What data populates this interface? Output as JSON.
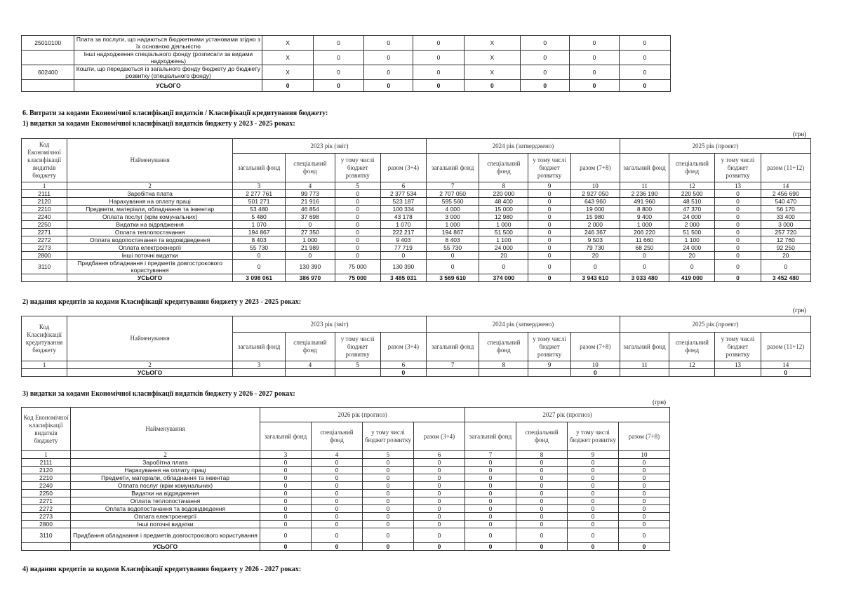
{
  "top_table": {
    "rows": [
      {
        "code": "25010100",
        "name": "Плата за послуги, що надаються бюджетними установами згідно з їх основною діяльністю",
        "values": [
          "X",
          "0",
          "0",
          "0",
          "X",
          "0",
          "0",
          "0"
        ]
      },
      {
        "code": "",
        "name": "Інші надходження спеціального фонду (розписати за видами надходжень)",
        "values": [
          "X",
          "0",
          "0",
          "0",
          "X",
          "0",
          "0",
          "0"
        ]
      },
      {
        "code": "602400",
        "name": "Кошти, що передаються із загального фонду бюджету до бюджету розвитку (спеціального фонду)",
        "values": [
          "X",
          "0",
          "0",
          "0",
          "X",
          "0",
          "0",
          "0"
        ]
      },
      {
        "code": "",
        "name": "УСЬОГО",
        "values": [
          "0",
          "0",
          "0",
          "0",
          "0",
          "0",
          "0",
          "0"
        ],
        "total": true
      }
    ]
  },
  "section6": {
    "title": "6. Витрати за кодами Економічної класифікації видатків / Класифікації кредитування бюджету:"
  },
  "s1": {
    "title": "1) видатки за кодами Економічної класифікації видатків бюджету у 2023 - 2025 роках:",
    "unit": "(грн)",
    "code_header": "Код Економічної класифікації видатків бюджету",
    "name_header": "Найменування",
    "years": [
      "2023 рік (звіт)",
      "2024 рік (затверджено)",
      "2025 рік (проект)"
    ],
    "subheaders": [
      "загальний фонд",
      "спеціальний фонд",
      "у тому числі бюджет розвитку",
      "разом (3+4)",
      "загальний фонд",
      "спеціальний фонд",
      "у тому числі бюджет розвитку",
      "разом (7+8)",
      "загальний фонд",
      "спеціальний фонд",
      "у тому числі бюджет розвитку",
      "разом (11+12)"
    ],
    "numbers": [
      "1",
      "2",
      "3",
      "4",
      "5",
      "6",
      "7",
      "8",
      "9",
      "10",
      "11",
      "12",
      "13",
      "14"
    ],
    "rows": [
      {
        "code": "2111",
        "name": "Заробітна плата",
        "values": [
          "2 277 761",
          "99 773",
          "0",
          "2 377 534",
          "2 707 050",
          "220 000",
          "0",
          "2 927 050",
          "2 236 190",
          "220 500",
          "0",
          "2 456 690"
        ]
      },
      {
        "code": "2120",
        "name": "Нарахування на оплату праці",
        "values": [
          "501 271",
          "21 916",
          "0",
          "523 187",
          "595 560",
          "48 400",
          "0",
          "643 960",
          "491 960",
          "48 510",
          "0",
          "540 470"
        ]
      },
      {
        "code": "2210",
        "name": "Предмети, матеріали, обладнання та інвентар",
        "values": [
          "53 480",
          "46 854",
          "0",
          "100 334",
          "4 000",
          "15 000",
          "0",
          "19 000",
          "8 800",
          "47 370",
          "0",
          "56 170"
        ]
      },
      {
        "code": "2240",
        "name": "Оплата послуг (крім комунальних)",
        "values": [
          "5 480",
          "37 698",
          "0",
          "43 178",
          "3 000",
          "12 980",
          "0",
          "15 980",
          "9 400",
          "24 000",
          "0",
          "33 400"
        ]
      },
      {
        "code": "2250",
        "name": "Видатки на відрядження",
        "values": [
          "1 070",
          "0",
          "0",
          "1 070",
          "1 000",
          "1 000",
          "0",
          "2 000",
          "1 000",
          "2 000",
          "0",
          "3 000"
        ]
      },
      {
        "code": "2271",
        "name": "Оплата теплопостачання",
        "values": [
          "194 867",
          "27 350",
          "0",
          "222 217",
          "194 867",
          "51 500",
          "0",
          "246 367",
          "206 220",
          "51 500",
          "0",
          "257 720"
        ]
      },
      {
        "code": "2272",
        "name": "Оплата водопостачання та водовідведення",
        "values": [
          "8 403",
          "1 000",
          "0",
          "9 403",
          "8 403",
          "1 100",
          "0",
          "9 503",
          "11 660",
          "1 100",
          "0",
          "12 760"
        ]
      },
      {
        "code": "2273",
        "name": "Оплата електроенергії",
        "values": [
          "55 730",
          "21 989",
          "0",
          "77 719",
          "55 730",
          "24 000",
          "0",
          "79 730",
          "68 250",
          "24 000",
          "0",
          "92 250"
        ]
      },
      {
        "code": "2800",
        "name": "Інші поточні видатки",
        "values": [
          "0",
          "0",
          "0",
          "0",
          "0",
          "20",
          "0",
          "20",
          "0",
          "20",
          "0",
          "20"
        ]
      },
      {
        "code": "3110",
        "name": "Придбання обладнання і предметів довгострокового користування",
        "values": [
          "0",
          "130 390",
          "75 000",
          "130 390",
          "0",
          "0",
          "0",
          "0",
          "0",
          "0",
          "0",
          "0"
        ],
        "tall": true
      },
      {
        "code": "",
        "name": "УСЬОГО",
        "values": [
          "3 098 061",
          "386 970",
          "75 000",
          "3 485 031",
          "3 569 610",
          "374 000",
          "0",
          "3 943 610",
          "3 033 480",
          "419 000",
          "0",
          "3 452 480"
        ],
        "total": true
      }
    ]
  },
  "s2": {
    "title": "2) надання кредитів за кодами Класифікації кредитування бюджету у 2023 - 2025 роках:",
    "unit": "(грн)",
    "code_header": "Код Класифікації кредитування бюджету",
    "name_header": "Найменування",
    "numbers": [
      "1",
      "2",
      "3",
      "4",
      "5",
      "6",
      "7",
      "8",
      "9",
      "10",
      "11",
      "12",
      "13",
      "14"
    ],
    "rows": [
      {
        "code": "",
        "name": "УСЬОГО",
        "values": [
          "",
          "",
          "",
          "0",
          "",
          "",
          "",
          "0",
          "",
          "",
          "",
          "0"
        ],
        "total": true
      }
    ]
  },
  "s3": {
    "title": "3) видатки за кодами Економічної класифікації видатків бюджету у 2026 - 2027 роках:",
    "unit": "(грн)",
    "code_header": "Код Економічної класифікації видатків бюджету",
    "name_header": "Найменування",
    "years": [
      "2026 рік (прогноз)",
      "2027 рік (прогноз)"
    ],
    "subheaders": [
      "загальний фонд",
      "спеціальний фонд",
      "у тому числі бюджет розвитку",
      "разом (3+4)",
      "загальний фонд",
      "спеціальний фонд",
      "у тому числі бюджет розвитку",
      "разом (7+8)"
    ],
    "numbers": [
      "1",
      "2",
      "3",
      "4",
      "5",
      "6",
      "7",
      "8",
      "9",
      "10"
    ],
    "rows": [
      {
        "code": "2111",
        "name": "Заробітна плата",
        "values": [
          "0",
          "0",
          "0",
          "0",
          "0",
          "0",
          "0",
          "0"
        ]
      },
      {
        "code": "2120",
        "name": "Нарахування на оплату праці",
        "values": [
          "0",
          "0",
          "0",
          "0",
          "0",
          "0",
          "0",
          "0"
        ]
      },
      {
        "code": "2210",
        "name": "Предмети, матеріали, обладнання та інвентар",
        "values": [
          "0",
          "0",
          "0",
          "0",
          "0",
          "0",
          "0",
          "0"
        ]
      },
      {
        "code": "2240",
        "name": "Оплата послуг (крім комунальних)",
        "values": [
          "0",
          "0",
          "0",
          "0",
          "0",
          "0",
          "0",
          "0"
        ]
      },
      {
        "code": "2250",
        "name": "Видатки на відрядження",
        "values": [
          "0",
          "0",
          "0",
          "0",
          "0",
          "0",
          "0",
          "0"
        ]
      },
      {
        "code": "2271",
        "name": "Оплата теплопостачання",
        "values": [
          "0",
          "0",
          "0",
          "0",
          "0",
          "0",
          "0",
          "0"
        ]
      },
      {
        "code": "2272",
        "name": "Оплата водопостачання та водовідведення",
        "values": [
          "0",
          "0",
          "0",
          "0",
          "0",
          "0",
          "0",
          "0"
        ]
      },
      {
        "code": "2273",
        "name": "Оплата електроенергії",
        "values": [
          "0",
          "0",
          "0",
          "0",
          "0",
          "0",
          "0",
          "0"
        ]
      },
      {
        "code": "2800",
        "name": "Інші поточні видатки",
        "values": [
          "0",
          "0",
          "0",
          "0",
          "0",
          "0",
          "0",
          "0"
        ]
      },
      {
        "code": "3110",
        "name": "Придбання обладнання і предметів довгострокового користування",
        "values": [
          "0",
          "0",
          "0",
          "0",
          "0",
          "0",
          "0",
          "0"
        ],
        "tall": true
      },
      {
        "code": "",
        "name": "УСЬОГО",
        "values": [
          "0",
          "0",
          "0",
          "0",
          "0",
          "0",
          "0",
          "0"
        ],
        "total": true
      }
    ]
  },
  "s4": {
    "title": "4) надання кредитів за кодами Класифікації кредитування бюджету у 2026 - 2027 роках:"
  }
}
